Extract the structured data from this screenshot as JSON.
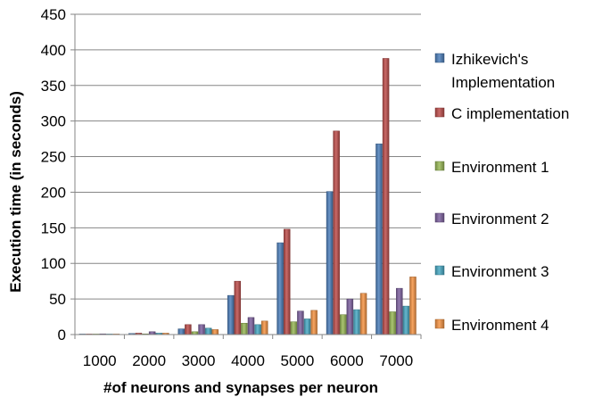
{
  "chart_data": {
    "type": "bar",
    "title": "",
    "xlabel": "#of neurons and synapses per neuron",
    "ylabel": "Execution time (in seconds)",
    "ylim": [
      0,
      450
    ],
    "yticks": [
      0,
      50,
      100,
      150,
      200,
      250,
      300,
      350,
      400,
      450
    ],
    "grid": true,
    "legend_position": "right",
    "categories": [
      "1000",
      "2000",
      "3000",
      "4000",
      "5000",
      "6000",
      "7000"
    ],
    "series": [
      {
        "name": "Izhikevich's Implementation",
        "legend_lines": [
          "Izhikevich's",
          "Implementation"
        ],
        "color": "#4f81bd",
        "values": [
          0.5,
          1.5,
          8,
          55,
          129,
          201,
          268
        ]
      },
      {
        "name": "C implementation",
        "legend_lines": [
          "C implementation"
        ],
        "color": "#c0504d",
        "values": [
          0.5,
          2,
          14,
          75,
          148,
          286,
          388
        ]
      },
      {
        "name": "Environment 1",
        "legend_lines": [
          "Environment 1"
        ],
        "color": "#9bbb59",
        "values": [
          0.3,
          1,
          4,
          16,
          18,
          28,
          32
        ]
      },
      {
        "name": "Environment 2",
        "legend_lines": [
          "Environment 2"
        ],
        "color": "#8064a2",
        "values": [
          1,
          4,
          14,
          24,
          33,
          50,
          65
        ]
      },
      {
        "name": "Environment 3",
        "legend_lines": [
          "Environment 3"
        ],
        "color": "#4bacc6",
        "values": [
          0.3,
          2,
          9,
          14,
          22,
          35,
          40
        ]
      },
      {
        "name": "Environment 4",
        "legend_lines": [
          "Environment 4"
        ],
        "color": "#f79646",
        "values": [
          0.5,
          2,
          7,
          19,
          34,
          58,
          81
        ]
      }
    ]
  }
}
